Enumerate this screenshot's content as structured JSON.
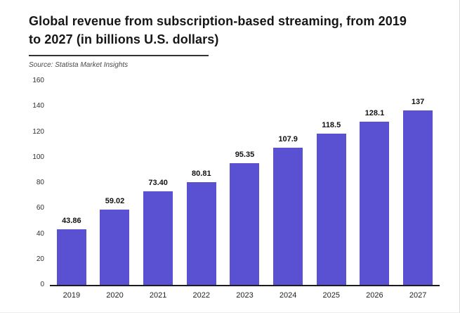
{
  "header": {
    "title": "Global revenue from subscription-based streaming, from 2019 to 2027 (in billions U.S. dollars)",
    "source": "Source: Statista Market Insights"
  },
  "chart_data": {
    "type": "bar",
    "title": "Global revenue from subscription-based streaming, from 2019 to 2027 (in billions U.S. dollars)",
    "categories": [
      "2019",
      "2020",
      "2021",
      "2022",
      "2023",
      "2024",
      "2025",
      "2026",
      "2027"
    ],
    "values": [
      43.86,
      59.02,
      73.4,
      80.81,
      95.35,
      107.9,
      118.5,
      128.1,
      137
    ],
    "value_labels": [
      "43.86",
      "59.02",
      "73.40",
      "80.81",
      "95.35",
      "107.9",
      "118.5",
      "128.1",
      "137"
    ],
    "xlabel": "",
    "ylabel": "",
    "ylim": [
      0,
      160
    ],
    "yticks": [
      0,
      20,
      40,
      60,
      80,
      100,
      120,
      140,
      160
    ],
    "bar_color": "#5a50d2",
    "grid": false,
    "legend": "none"
  }
}
